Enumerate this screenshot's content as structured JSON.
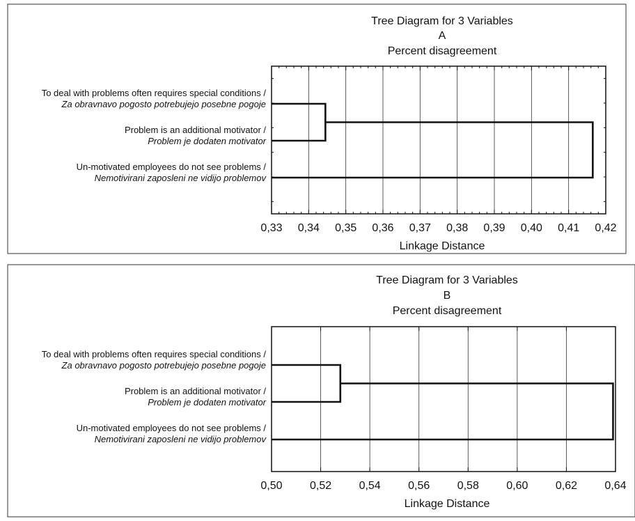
{
  "chart_data": [
    {
      "type": "dendrogram",
      "title": "Tree Diagram for 3 Variables",
      "subtitle": "A",
      "metric": "Percent disagreement",
      "xlabel": "Linkage Distance",
      "xlim": [
        0.33,
        0.42
      ],
      "xticks": [
        "0,33",
        "0,34",
        "0,35",
        "0,36",
        "0,37",
        "0,38",
        "0,39",
        "0,40",
        "0,41",
        "0,42"
      ],
      "grid": true,
      "variables": [
        {
          "line1": "To deal with problems often requires special conditions /",
          "line2": "Za obravnavo pogosto potrebujejo posebne pogoje"
        },
        {
          "line1": "Problem is an additional motivator /",
          "line2": "Problem je dodaten motivator"
        },
        {
          "line1": "Un-motivated employees do not see problems /",
          "line2": "Nemotivirani zaposleni ne vidijo problemov"
        }
      ],
      "merges": [
        {
          "items": [
            0,
            1
          ],
          "distance": 0.3445
        },
        {
          "items": [
            "c0",
            2
          ],
          "distance": 0.4165
        }
      ]
    },
    {
      "type": "dendrogram",
      "title": "Tree Diagram for 3 Variables",
      "subtitle": "B",
      "metric": "Percent disagreement",
      "xlabel": "Linkage Distance",
      "xlim": [
        0.5,
        0.64
      ],
      "xticks": [
        "0,50",
        "0,52",
        "0,54",
        "0,56",
        "0,58",
        "0,60",
        "0,62",
        "0,64"
      ],
      "grid": true,
      "variables": [
        {
          "line1": "To deal with problems often requires special conditions /",
          "line2": "Za obravnavo pogosto potrebujejo posebne pogoje"
        },
        {
          "line1": "Problem is an additional motivator /",
          "line2": "Problem je dodaten motivator"
        },
        {
          "line1": "Un-motivated employees do not see problems /",
          "line2": "Nemotivirani zaposleni ne vidijo problemov"
        }
      ],
      "merges": [
        {
          "items": [
            0,
            1
          ],
          "distance": 0.528
        },
        {
          "items": [
            "c0",
            2
          ],
          "distance": 0.639
        }
      ]
    }
  ]
}
